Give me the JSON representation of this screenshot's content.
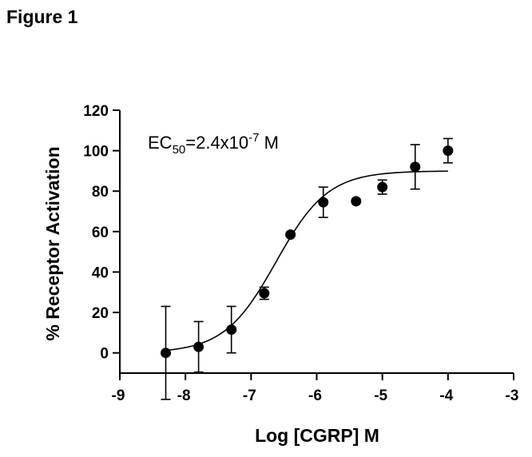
{
  "figure_label": "Figure 1",
  "chart_data": {
    "type": "scatter",
    "xlabel": "Log [CGRP] M",
    "ylabel": "% Receptor Activation",
    "xlim": [
      -9,
      -3
    ],
    "ylim": [
      -10,
      120
    ],
    "x_ticks": [
      -9,
      -8,
      -7,
      -6,
      -5,
      -4,
      -3
    ],
    "y_ticks": [
      0,
      20,
      40,
      60,
      80,
      100,
      120
    ],
    "annotation": {
      "prefix": "EC",
      "subscript": "50",
      "value": "=2.4x10",
      "exponent": "-7",
      "suffix": " M"
    },
    "series": [
      {
        "points": [
          {
            "x": -8.3,
            "y": 0,
            "err": 23
          },
          {
            "x": -7.8,
            "y": 3,
            "err": 12.5
          },
          {
            "x": -7.3,
            "y": 11.5,
            "err": 11.5
          },
          {
            "x": -6.8,
            "y": 29.5,
            "err": 3
          },
          {
            "x": -6.4,
            "y": 58.5,
            "err": 0
          },
          {
            "x": -5.9,
            "y": 74.5,
            "err": 7.5
          },
          {
            "x": -5.4,
            "y": 75,
            "err": 0
          },
          {
            "x": -5.0,
            "y": 82,
            "err": 3.5
          },
          {
            "x": -4.5,
            "y": 92,
            "err": 11
          },
          {
            "x": -4.0,
            "y": 100,
            "err": 6
          }
        ],
        "fit": {
          "bottom": 0,
          "top": 90,
          "log_ec50": -6.62,
          "hill": 1.1,
          "x_range": [
            -8.3,
            -4.0
          ]
        },
        "color": "#000000"
      }
    ]
  }
}
